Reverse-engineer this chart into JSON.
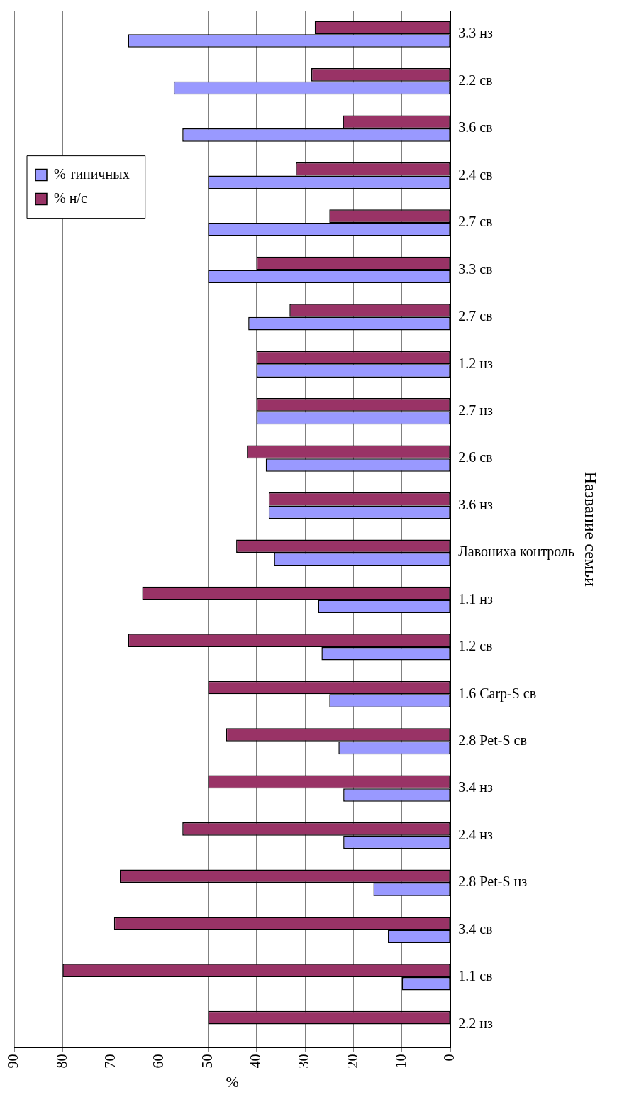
{
  "chart_data": {
    "type": "bar",
    "orientation": "horizontal",
    "xlabel": "%",
    "ylabel": "Название семьи",
    "categories": [
      "3.3 нз",
      "2.2 св",
      "3.6 св",
      "2.4 св",
      "2.7 св",
      "3.3 св",
      "2.7 св",
      "1.2 нз",
      "2.7 нз",
      "2.6 св",
      "3.6 нз",
      "Лавониха контроль",
      "1.1 нз",
      "1.2 св",
      "1.6 Carp-S св",
      "2.8 Pet-S св",
      "3.4 нз",
      "2.4 нз",
      "2.8 Pet-S нз",
      "3.4 св",
      "1.1 св",
      "2.2 нз"
    ],
    "series": [
      {
        "name": "% н/с",
        "color": "#993366",
        "values": [
          28,
          28.7,
          22.2,
          31.9,
          25,
          40,
          33.2,
          40,
          40,
          42,
          37.5,
          44.2,
          63.6,
          66.5,
          50,
          46.3,
          50,
          55.3,
          68.2,
          69.4,
          80,
          50
        ]
      },
      {
        "name": "% типичных",
        "color": "#9999ff",
        "values": [
          66.5,
          57.1,
          55.3,
          50,
          50,
          50,
          41.7,
          40,
          40,
          38.1,
          37.5,
          36.4,
          27.3,
          26.6,
          25,
          23.1,
          22.1,
          22.1,
          15.9,
          12.9,
          10,
          0
        ]
      }
    ],
    "xlim": [
      90,
      0
    ],
    "xticks": [
      90,
      80,
      70,
      60,
      50,
      40,
      30,
      20,
      10,
      0
    ],
    "grid": "x",
    "legend": "left"
  }
}
